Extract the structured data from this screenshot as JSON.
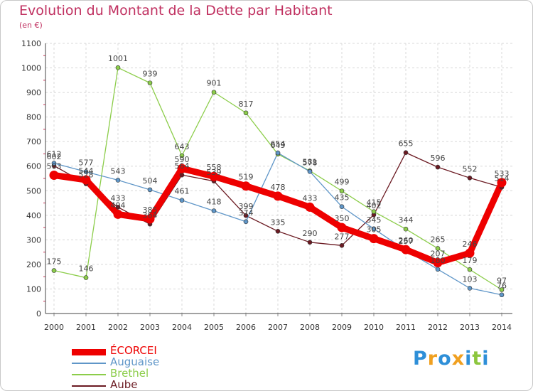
{
  "header": {
    "title": "Evolution du Montant de la Dette par Habitant",
    "subtitle": "(en €)"
  },
  "branding": {
    "logo_text": "Proxiti",
    "letters": [
      {
        "ch": "P",
        "color": "#2e8fd8"
      },
      {
        "ch": "r",
        "color": "#f0a020"
      },
      {
        "ch": "o",
        "color": "#2e8fd8"
      },
      {
        "ch": "x",
        "color": "#f0a020"
      },
      {
        "ch": "i",
        "color": "#2e8fd8"
      },
      {
        "ch": "t",
        "color": "#8cc63e"
      },
      {
        "ch": "i",
        "color": "#2e8fd8"
      }
    ]
  },
  "chart_data": {
    "type": "line",
    "title": "Evolution du Montant de la Dette par Habitant",
    "ylabel": "(en €)",
    "xlabel": "",
    "ylim": [
      0,
      1100
    ],
    "yticks": [
      0,
      100,
      200,
      300,
      400,
      500,
      600,
      700,
      800,
      900,
      1000,
      1100
    ],
    "x": [
      "2000",
      "2001",
      "2002",
      "2003",
      "2004",
      "2005",
      "2006",
      "2007",
      "2008",
      "2009",
      "2010",
      "2011",
      "2012",
      "2013",
      "2014"
    ],
    "grid": true,
    "legend": "bottom-left",
    "series": [
      {
        "name": "Aube",
        "color": "#6b1a22",
        "values": [
          602,
          528,
          433,
          364,
          564,
          539,
          399,
          335,
          290,
          277,
          402,
          655,
          596,
          552,
          514
        ]
      },
      {
        "name": "Brethel",
        "color": "#8ccd4a",
        "values": [
          175,
          146,
          1001,
          939,
          643,
          901,
          817,
          649,
          581,
          499,
          415,
          344,
          265,
          179,
          97
        ]
      },
      {
        "name": "Auguaise",
        "color": "#5f96c8",
        "values": [
          612,
          577,
          543,
          504,
          461,
          418,
          374,
          654,
          578,
          435,
          345,
          257,
          180,
          103,
          76
        ]
      },
      {
        "name": "ÉCORCEI",
        "color": "#ee0000",
        "values": [
          563,
          544,
          404,
          385,
          590,
          558,
          519,
          478,
          433,
          350,
          305,
          260,
          207,
          246,
          533
        ]
      }
    ],
    "legend_order": [
      "ÉCORCEI",
      "Auguaise",
      "Brethel",
      "Aube"
    ]
  }
}
